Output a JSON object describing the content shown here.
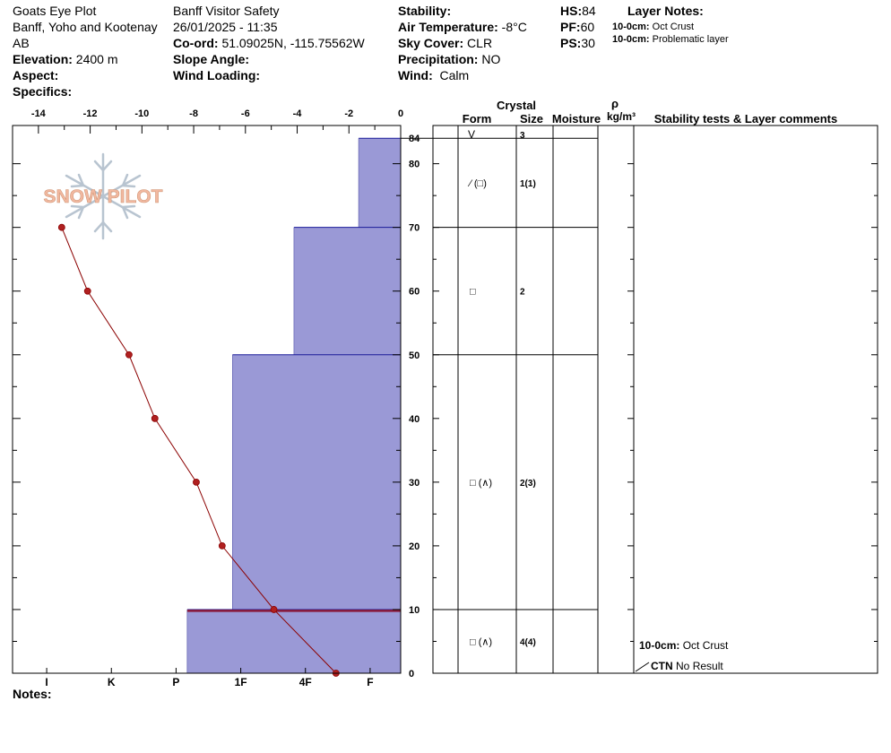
{
  "header": {
    "plot_name": "Goats Eye Plot",
    "region_line1": "Banff, Yoho and Kootenay",
    "region_line2": "AB",
    "elevation_label": "Elevation:",
    "elevation_value": "2400 m",
    "aspect_label": "Aspect:",
    "specifics_label": "Specifics:",
    "operation": "Banff  Visitor Safety",
    "datetime": "26/01/2025 - 11:35",
    "coord_label": "Co-ord:",
    "coord_value": "51.09025N, -115.75562W",
    "slope_label": "Slope Angle:",
    "wind_loading_label": "Wind Loading:",
    "stability_label": "Stability:",
    "air_temp_label": "Air Temperature:",
    "air_temp_value": "-8°C",
    "sky_label": "Sky Cover:",
    "sky_value": "CLR",
    "precip_label": "Precipitation:",
    "precip_value": "NO",
    "wind_label": "Wind:",
    "wind_value": "Calm",
    "hs_label": "HS:",
    "hs_value": "84",
    "pf_label": "PF:",
    "pf_value": "60",
    "ps_label": "PS:",
    "ps_value": "30",
    "layer_notes_title": "Layer Notes:",
    "layer_notes": [
      {
        "depth": "10-0cm:",
        "text": "Oct Crust"
      },
      {
        "depth": "10-0cm:",
        "text": "Problematic layer"
      }
    ]
  },
  "notes_label": "Notes:",
  "logo_text": "SNOW PILOT",
  "colors": {
    "hardness_fill": "#9a99d6",
    "hardness_edge": "#1a1a99",
    "temp_line": "#8b0000",
    "temp_point": "#b02020",
    "crust_line": "#8b1a3a",
    "logo_text": "#f2b8a0",
    "logo_flake": "#b8c4d0"
  },
  "chart_data": {
    "type": "snow_profile",
    "temperature_axis": {
      "range": [
        -15,
        0
      ],
      "ticks": [
        -14,
        -12,
        -10,
        -8,
        -6,
        -4,
        -2,
        0
      ],
      "tick_labels": [
        "-14",
        "-12",
        "-10",
        "-8",
        "-6",
        "-4",
        "-2",
        "0"
      ]
    },
    "height_axis": {
      "range": [
        0,
        86
      ],
      "ticks": [
        0,
        10,
        20,
        30,
        40,
        50,
        60,
        70,
        80,
        84
      ],
      "tick_labels": [
        "0",
        "10",
        "20",
        "30",
        "40",
        "50",
        "60",
        "70",
        "80",
        "84"
      ]
    },
    "hardness_axis": {
      "labels": [
        "I",
        "K",
        "P",
        "1F",
        "4F",
        "F"
      ],
      "positions": [
        1,
        2,
        3,
        4,
        5,
        6
      ]
    },
    "hardness_layers": [
      {
        "top": 84,
        "bottom": 70,
        "hardness_index": 0.65
      },
      {
        "top": 70,
        "bottom": 50,
        "hardness_index": 1.65
      },
      {
        "top": 50,
        "bottom": 10,
        "hardness_index": 2.6
      },
      {
        "top": 10,
        "bottom": 0,
        "hardness_index": 3.3
      }
    ],
    "temperature_profile": [
      {
        "height": 70,
        "temp": -13.1
      },
      {
        "height": 60,
        "temp": -12.1
      },
      {
        "height": 50,
        "temp": -10.5
      },
      {
        "height": 40,
        "temp": -9.5
      },
      {
        "height": 30,
        "temp": -7.9
      },
      {
        "height": 20,
        "temp": -6.9
      },
      {
        "height": 10,
        "temp": -4.9
      },
      {
        "height": 0,
        "temp": -2.5
      }
    ],
    "crust_marker_height": 9.8,
    "table": {
      "crystal_header": "Crystal",
      "form_header": "Form",
      "size_header": "Size",
      "moisture_header": "Moisture",
      "density_symbol": "ρ",
      "density_unit": "kg/m³",
      "comments_header": "Stability tests & Layer comments",
      "surface_row": {
        "form": "V",
        "size": "3"
      },
      "layers": [
        {
          "top": 84,
          "bottom": 70,
          "form": "⁄ (□)",
          "size": "1(1)"
        },
        {
          "top": 70,
          "bottom": 50,
          "form": "□",
          "size": "2"
        },
        {
          "top": 50,
          "bottom": 10,
          "form": "□ (∧)",
          "size": "2(3)"
        },
        {
          "top": 10,
          "bottom": 0,
          "form": "□ (∧)",
          "size": "4(4)"
        }
      ],
      "comments": [
        {
          "label": "10-0cm:",
          "text": "Oct Crust"
        },
        {
          "label": "CTN",
          "text": "No Result"
        }
      ]
    }
  }
}
